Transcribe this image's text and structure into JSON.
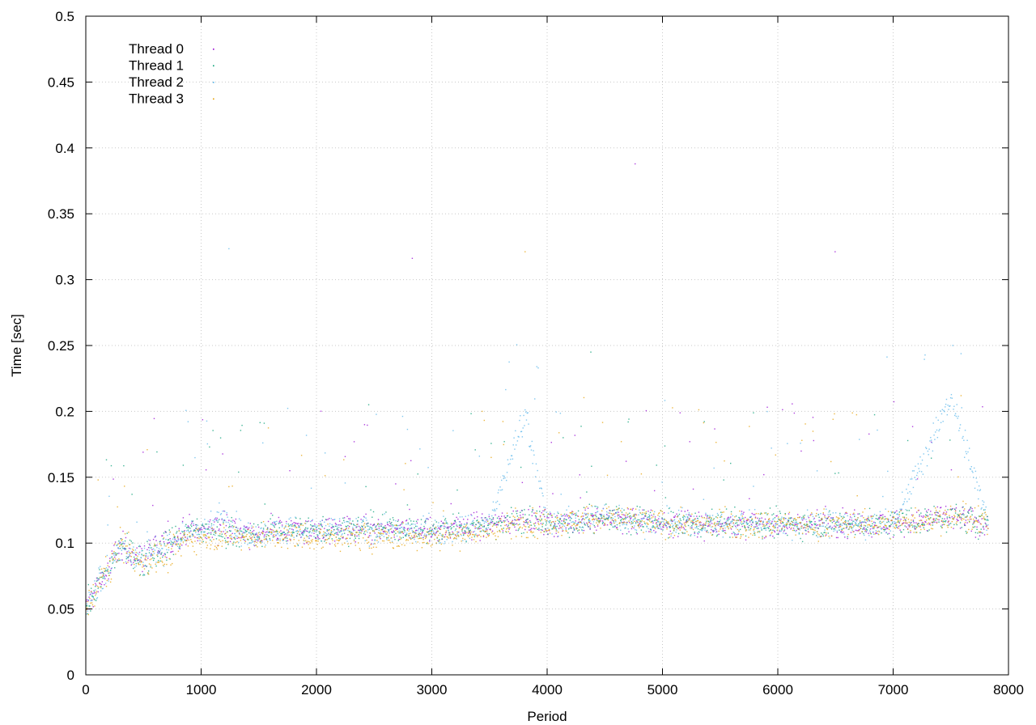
{
  "chart_data": {
    "type": "scatter",
    "title": "",
    "xlabel": "Period",
    "ylabel": "Time [sec]",
    "xlim": [
      0,
      8000
    ],
    "ylim": [
      0,
      0.5
    ],
    "xticks": [
      0,
      1000,
      2000,
      3000,
      4000,
      5000,
      6000,
      7000,
      8000
    ],
    "yticks": [
      0,
      0.05,
      0.1,
      0.15,
      0.2,
      0.25,
      0.3,
      0.35,
      0.4,
      0.45,
      0.5
    ],
    "xtick_labels": [
      "0",
      "1000",
      "2000",
      "3000",
      "4000",
      "5000",
      "6000",
      "7000",
      "8000"
    ],
    "ytick_labels": [
      "0",
      "0.05",
      "0.1",
      "0.15",
      "0.2",
      "0.25",
      "0.3",
      "0.35",
      "0.4",
      "0.45",
      "0.5"
    ],
    "grid": true,
    "legend_position": "top-left",
    "x_max_observed": 7820,
    "series": [
      {
        "name": "Thread 0",
        "color": "#9400d3",
        "x": [
          0,
          100,
          200,
          300,
          400,
          500,
          600,
          700,
          800,
          900,
          1000,
          1200,
          1400,
          1600,
          1800,
          2000,
          2500,
          3000,
          3500,
          3800,
          4000,
          4500,
          5000,
          5500,
          6000,
          6500,
          7000,
          7500,
          7820
        ],
        "y": [
          0.05,
          0.07,
          0.08,
          0.1,
          0.09,
          0.09,
          0.095,
          0.1,
          0.105,
          0.11,
          0.11,
          0.115,
          0.105,
          0.11,
          0.11,
          0.11,
          0.11,
          0.11,
          0.115,
          0.12,
          0.115,
          0.12,
          0.115,
          0.115,
          0.115,
          0.115,
          0.115,
          0.12,
          0.115
        ]
      },
      {
        "name": "Thread 1",
        "color": "#009e73",
        "x": [
          0,
          100,
          200,
          300,
          400,
          500,
          600,
          700,
          800,
          900,
          1000,
          1200,
          1400,
          1600,
          1800,
          2000,
          2500,
          3000,
          3500,
          3800,
          4000,
          4500,
          5000,
          5500,
          6000,
          6500,
          7000,
          7500,
          7820
        ],
        "y": [
          0.05,
          0.07,
          0.08,
          0.1,
          0.09,
          0.088,
          0.095,
          0.1,
          0.105,
          0.11,
          0.11,
          0.11,
          0.105,
          0.11,
          0.11,
          0.11,
          0.112,
          0.11,
          0.115,
          0.118,
          0.115,
          0.12,
          0.115,
          0.115,
          0.115,
          0.115,
          0.115,
          0.12,
          0.115
        ]
      },
      {
        "name": "Thread 2",
        "color": "#56b4e9",
        "x": [
          0,
          100,
          200,
          300,
          400,
          500,
          600,
          700,
          800,
          900,
          1000,
          1200,
          1400,
          1600,
          1800,
          2000,
          2500,
          3000,
          3500,
          3800,
          4000,
          4500,
          5000,
          5500,
          6000,
          6500,
          7000,
          7500,
          7820
        ],
        "y": [
          0.05,
          0.07,
          0.08,
          0.1,
          0.09,
          0.09,
          0.095,
          0.1,
          0.105,
          0.11,
          0.11,
          0.12,
          0.105,
          0.11,
          0.11,
          0.11,
          0.11,
          0.11,
          0.115,
          0.2,
          0.115,
          0.12,
          0.115,
          0.115,
          0.115,
          0.115,
          0.115,
          0.21,
          0.115
        ]
      },
      {
        "name": "Thread 3",
        "color": "#e69f00",
        "x": [
          0,
          100,
          200,
          300,
          400,
          500,
          600,
          700,
          800,
          900,
          1000,
          1200,
          1400,
          1600,
          1800,
          2000,
          2500,
          3000,
          3500,
          3800,
          4000,
          4500,
          5000,
          5500,
          6000,
          6500,
          7000,
          7500,
          7820
        ],
        "y": [
          0.05,
          0.07,
          0.08,
          0.1,
          0.09,
          0.085,
          0.09,
          0.09,
          0.1,
          0.105,
          0.105,
          0.105,
          0.105,
          0.105,
          0.105,
          0.105,
          0.105,
          0.105,
          0.11,
          0.115,
          0.115,
          0.12,
          0.115,
          0.115,
          0.115,
          0.115,
          0.115,
          0.12,
          0.115
        ]
      }
    ]
  }
}
